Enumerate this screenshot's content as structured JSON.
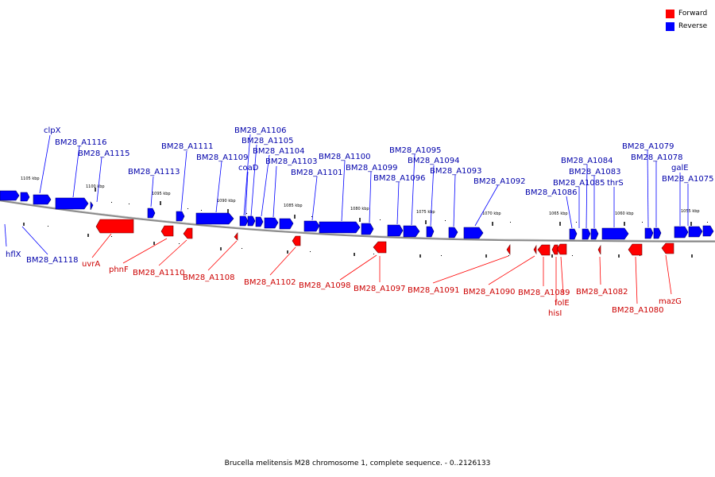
{
  "caption": "Brucella melitensis M28 chromosome 1, complete sequence. - 0..2126133",
  "legend": [
    {
      "label": "Forward",
      "color": "#ff0000"
    },
    {
      "label": "Reverse",
      "color": "#0000ff"
    }
  ],
  "colors": {
    "forward": "#ff0000",
    "reverse": "#0000ff",
    "forward_label": "#cc0000",
    "reverse_label": "#0000aa",
    "backbone": "#888888"
  },
  "kbp_labels": [
    "1105 kbp",
    "1100 kbp",
    "1095 kbp",
    "1090 kbp",
    "1085 kbp",
    "1080 kbp",
    "1075 kbp",
    "1070 kbp",
    "1065 kbp",
    "1060 kbp",
    "1055 kbp"
  ],
  "reverse_labels": [
    "clpX",
    "BM28_A1116",
    "BM28_A1115",
    "BM28_A1113",
    "BM28_A1111",
    "BM28_A1109",
    "BM28_A1106",
    "BM28_A1105",
    "coaD",
    "BM28_A1104",
    "BM28_A1103",
    "BM28_A1101",
    "BM28_A1100",
    "BM28_A1099",
    "BM28_A1096",
    "BM28_A1095",
    "BM28_A1094",
    "BM28_A1093",
    "BM28_A1092",
    "BM28_A1086",
    "BM28_A1084",
    "BM28_A1085",
    "BM28_A1083",
    "thrS",
    "BM28_A1079",
    "BM28_A1078",
    "galE",
    "BM28_A1075",
    "hflX",
    "BM28_A1118"
  ],
  "forward_labels": [
    "uvrA",
    "phnF",
    "BM28_A1110",
    "BM28_A1108",
    "BM28_A1102",
    "BM28_A1098",
    "BM28_A1097",
    "BM28_A1091",
    "BM28_A1090",
    "BM28_A1089",
    "folE",
    "hisI",
    "BM28_A1082",
    "BM28_A1080",
    "mazG"
  ]
}
